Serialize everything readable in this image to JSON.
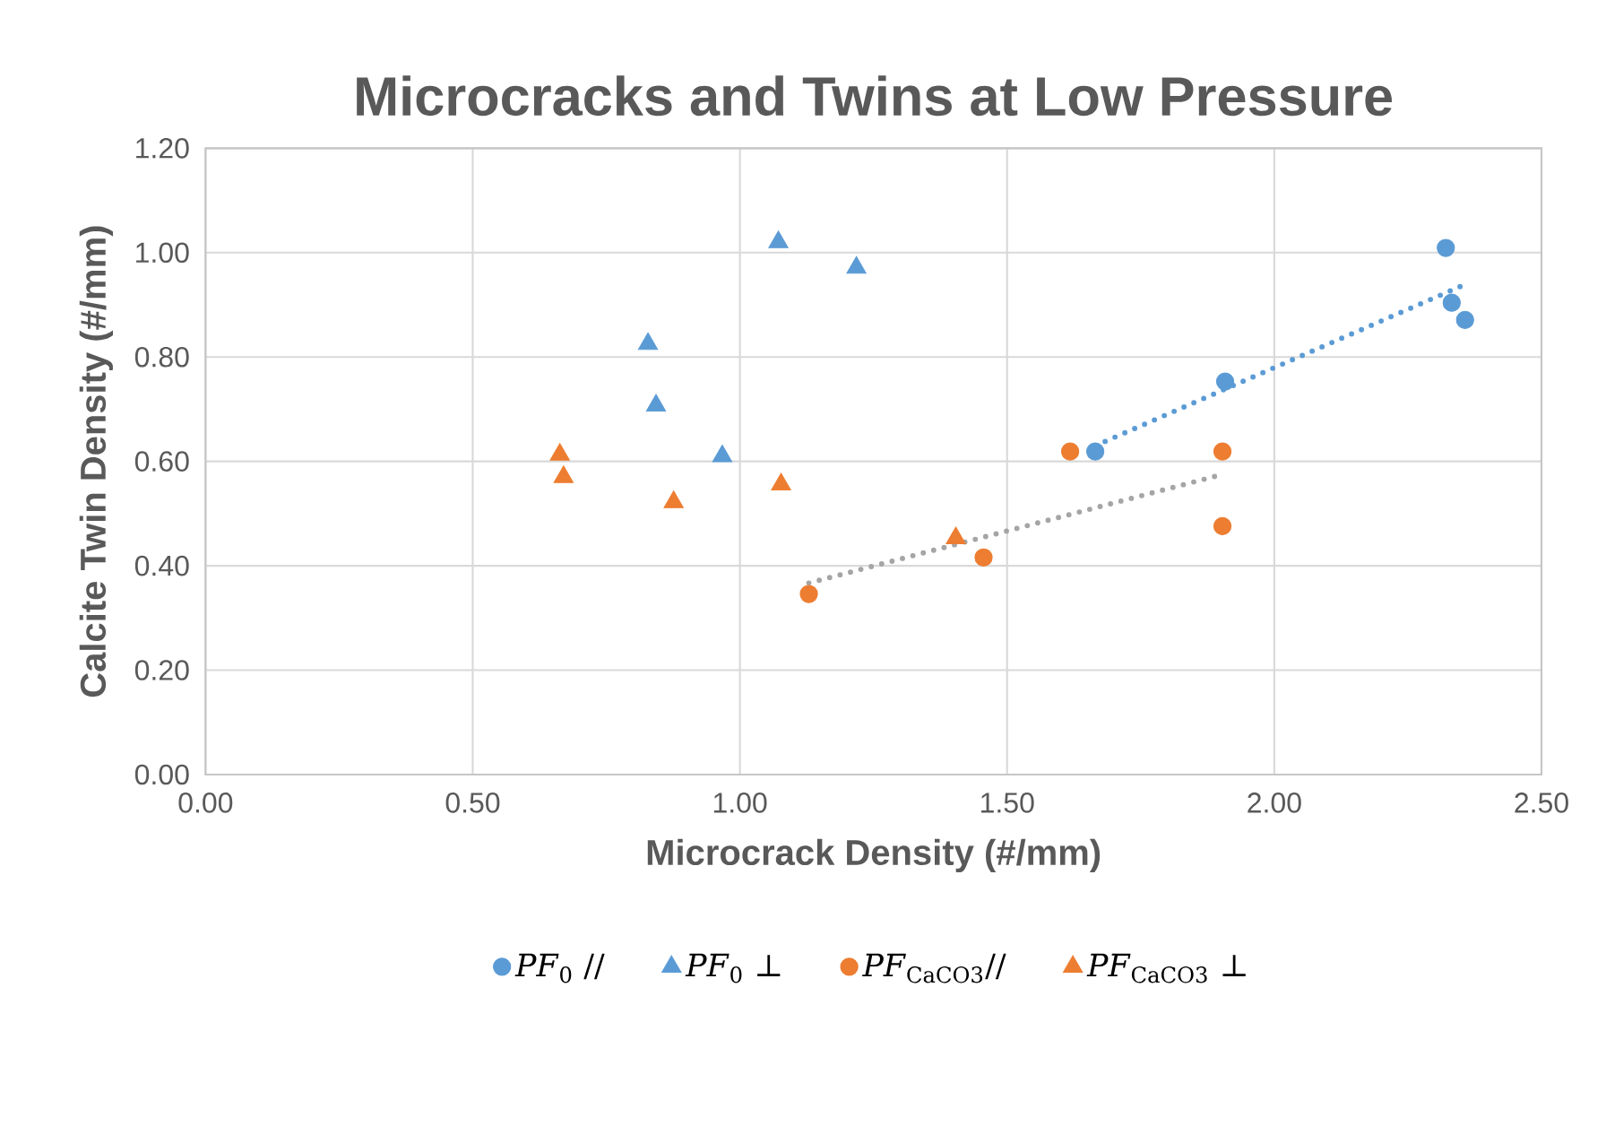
{
  "chart_data": {
    "type": "scatter",
    "title": "Microcracks and Twins at Low Pressure",
    "xlabel": "Microcrack Density (#/mm)",
    "ylabel": "Calcite Twin Density (#/mm)",
    "xlim": [
      0,
      2.5
    ],
    "ylim": [
      0,
      1.2
    ],
    "xticks": [
      {
        "value": 0,
        "label": "0.00"
      },
      {
        "value": 0.5,
        "label": "0.50"
      },
      {
        "value": 1,
        "label": "1.00"
      },
      {
        "value": 1.5,
        "label": "1.50"
      },
      {
        "value": 2,
        "label": "2.00"
      },
      {
        "value": 2.5,
        "label": "2.50"
      }
    ],
    "yticks": [
      {
        "value": 0,
        "label": "0.00"
      },
      {
        "value": 0.2,
        "label": "0.20"
      },
      {
        "value": 0.4,
        "label": "0.40"
      },
      {
        "value": 0.6,
        "label": "0.60"
      },
      {
        "value": 0.8,
        "label": "0.80"
      },
      {
        "value": 1,
        "label": "1.00"
      },
      {
        "value": 1.2,
        "label": "1.20"
      }
    ],
    "grid": true,
    "legend": "bottom",
    "series": [
      {
        "name": "*PF*$_{0}$ //",
        "marker": "circle",
        "color": "#5b9bd5",
        "x": [
          1.665,
          1.908,
          2.321,
          2.332,
          2.357
        ],
        "values": [
          0.619,
          0.753,
          1.009,
          0.904,
          0.871
        ]
      },
      {
        "name": "*PF*$_{0}$ ⊥",
        "marker": "triangle",
        "color": "#5b9bd5",
        "x": [
          1.072,
          1.218,
          0.828,
          0.843,
          0.967
        ],
        "values": [
          1.02,
          0.971,
          0.825,
          0.707,
          0.61
        ]
      },
      {
        "name": "*PF*$_{CaCO3}$//",
        "marker": "circle",
        "color": "#ed7d31",
        "x": [
          1.129,
          1.456,
          1.618,
          1.903,
          1.903
        ],
        "values": [
          0.346,
          0.416,
          0.619,
          0.619,
          0.476
        ]
      },
      {
        "name": "*PF*$_{CaCO3}$ ⊥",
        "marker": "triangle",
        "color": "#ed7d31",
        "x": [
          0.663,
          0.67,
          0.876,
          1.077,
          1.404
        ],
        "values": [
          0.613,
          0.57,
          0.522,
          0.556,
          0.453
        ]
      },
      {
        "type": "line",
        "line_style": "dotted",
        "color": "#5b9bd5",
        "x": [
          1.665,
          2.357
        ],
        "values": [
          0.63,
          0.939
        ]
      },
      {
        "type": "line",
        "line_style": "dotted",
        "color": "#a5a5a5",
        "x": [
          1.129,
          1.903
        ],
        "values": [
          0.367,
          0.575
        ]
      }
    ]
  }
}
